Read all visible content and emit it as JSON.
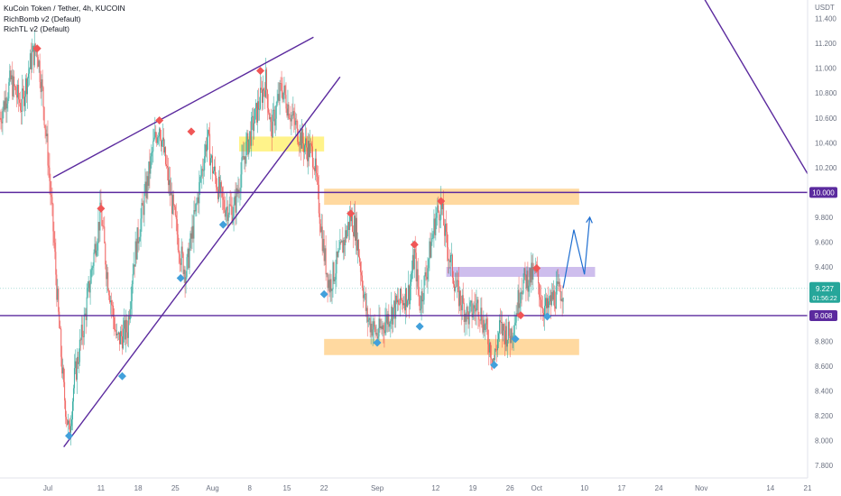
{
  "legend": {
    "title": "KuCoin Token / Tether, 4h, KUCOIN",
    "indicator1": "RichBomb v2 (Default)",
    "indicator2": "RichTL v2 (Default)"
  },
  "colors": {
    "up": "#26a69a",
    "down": "#ef5350",
    "trendline": "#5b2a9e",
    "zone_yellow": "#fff176",
    "zone_orange": "#ffd28f",
    "zone_purple": "#c5b3ea",
    "marker_red": "#f05656",
    "marker_blue": "#42a0db",
    "projection": "#1f6fd1",
    "tag_purple": "#5b2a9e",
    "tag_green": "#26a69a"
  },
  "chart_data": {
    "type": "candlestick",
    "title": "KuCoin Token / Tether, 4h, KUCOIN",
    "xlabel": "",
    "ylabel": "USDT",
    "ylim": [
      7.7,
      11.55
    ],
    "x_axis": {
      "range": [
        "2021-06-22",
        "2021-11-21"
      ],
      "tick_labels": [
        {
          "date": "2021-07-01",
          "label": "Jul"
        },
        {
          "date": "2021-07-11",
          "label": "11"
        },
        {
          "date": "2021-07-18",
          "label": "18"
        },
        {
          "date": "2021-07-25",
          "label": "25"
        },
        {
          "date": "2021-08-01",
          "label": "Aug"
        },
        {
          "date": "2021-08-08",
          "label": "8"
        },
        {
          "date": "2021-08-15",
          "label": "15"
        },
        {
          "date": "2021-08-22",
          "label": "22"
        },
        {
          "date": "2021-09-01",
          "label": "Sep"
        },
        {
          "date": "2021-09-12",
          "label": "12"
        },
        {
          "date": "2021-09-19",
          "label": "19"
        },
        {
          "date": "2021-09-26",
          "label": "26"
        },
        {
          "date": "2021-10-01",
          "label": "Oct"
        },
        {
          "date": "2021-10-10",
          "label": "10"
        },
        {
          "date": "2021-10-17",
          "label": "17"
        },
        {
          "date": "2021-10-24",
          "label": "24"
        },
        {
          "date": "2021-11-01",
          "label": "Nov"
        },
        {
          "date": "2021-11-14",
          "label": "14"
        },
        {
          "date": "2021-11-21",
          "label": "21"
        }
      ]
    },
    "y_axis": {
      "unit": "USDT",
      "tick_values": [
        7.8,
        8.0,
        8.2,
        8.4,
        8.6,
        8.8,
        9.0,
        9.2,
        9.4,
        9.6,
        9.8,
        10.0,
        10.2,
        10.4,
        10.6,
        10.8,
        11.0,
        11.2,
        11.4
      ],
      "tick_labels": [
        "7.800",
        "8.000",
        "8.200",
        "8.400",
        "8.600",
        "8.800",
        "9.000",
        "9.200",
        "9.400",
        "9.600",
        "9.800",
        "10.000",
        "10.200",
        "10.400",
        "10.600",
        "10.800",
        "11.000",
        "11.200",
        "11.400"
      ]
    },
    "price_path": [
      {
        "date": "2021-06-22",
        "close": 10.6
      },
      {
        "date": "2021-06-24",
        "close": 10.9
      },
      {
        "date": "2021-06-26",
        "close": 10.7
      },
      {
        "date": "2021-06-28",
        "close": 11.1
      },
      {
        "date": "2021-06-29",
        "close": 11.15
      },
      {
        "date": "2021-06-30",
        "close": 10.8
      },
      {
        "date": "2021-07-01",
        "close": 10.3
      },
      {
        "date": "2021-07-02",
        "close": 9.7
      },
      {
        "date": "2021-07-03",
        "close": 9.0
      },
      {
        "date": "2021-07-04",
        "close": 8.4
      },
      {
        "date": "2021-07-05",
        "close": 8.05
      },
      {
        "date": "2021-07-06",
        "close": 8.5
      },
      {
        "date": "2021-07-08",
        "close": 9.0
      },
      {
        "date": "2021-07-10",
        "close": 9.6
      },
      {
        "date": "2021-07-11",
        "close": 9.85
      },
      {
        "date": "2021-07-12",
        "close": 9.4
      },
      {
        "date": "2021-07-14",
        "close": 8.8
      },
      {
        "date": "2021-07-16",
        "close": 8.9
      },
      {
        "date": "2021-07-17",
        "close": 9.4
      },
      {
        "date": "2021-07-19",
        "close": 9.9
      },
      {
        "date": "2021-07-21",
        "close": 10.4
      },
      {
        "date": "2021-07-22",
        "close": 10.55
      },
      {
        "date": "2021-07-24",
        "close": 10.0
      },
      {
        "date": "2021-07-26",
        "close": 9.5
      },
      {
        "date": "2021-07-27",
        "close": 9.35
      },
      {
        "date": "2021-07-29",
        "close": 9.9
      },
      {
        "date": "2021-07-31",
        "close": 10.45
      },
      {
        "date": "2021-08-01",
        "close": 10.2
      },
      {
        "date": "2021-08-03",
        "close": 9.9
      },
      {
        "date": "2021-08-05",
        "close": 9.85
      },
      {
        "date": "2021-08-07",
        "close": 10.3
      },
      {
        "date": "2021-08-09",
        "close": 10.6
      },
      {
        "date": "2021-08-11",
        "close": 10.9
      },
      {
        "date": "2021-08-12",
        "close": 10.5
      },
      {
        "date": "2021-08-14",
        "close": 10.85
      },
      {
        "date": "2021-08-16",
        "close": 10.6
      },
      {
        "date": "2021-08-18",
        "close": 10.4
      },
      {
        "date": "2021-08-20",
        "close": 10.3
      },
      {
        "date": "2021-08-21",
        "close": 9.9
      },
      {
        "date": "2021-08-22",
        "close": 9.5
      },
      {
        "date": "2021-08-23",
        "close": 9.25
      },
      {
        "date": "2021-08-25",
        "close": 9.5
      },
      {
        "date": "2021-08-27",
        "close": 9.8
      },
      {
        "date": "2021-08-28",
        "close": 9.7
      },
      {
        "date": "2021-08-30",
        "close": 9.0
      },
      {
        "date": "2021-09-01",
        "close": 8.85
      },
      {
        "date": "2021-09-03",
        "close": 9.0
      },
      {
        "date": "2021-09-05",
        "close": 9.1
      },
      {
        "date": "2021-09-07",
        "close": 9.2
      },
      {
        "date": "2021-09-08",
        "close": 9.5
      },
      {
        "date": "2021-09-09",
        "close": 9.1
      },
      {
        "date": "2021-09-10",
        "close": 9.3
      },
      {
        "date": "2021-09-12",
        "close": 9.8
      },
      {
        "date": "2021-09-13",
        "close": 9.9
      },
      {
        "date": "2021-09-14",
        "close": 9.6
      },
      {
        "date": "2021-09-16",
        "close": 9.2
      },
      {
        "date": "2021-09-18",
        "close": 9.0
      },
      {
        "date": "2021-09-20",
        "close": 9.1
      },
      {
        "date": "2021-09-22",
        "close": 8.8
      },
      {
        "date": "2021-09-23",
        "close": 8.65
      },
      {
        "date": "2021-09-24",
        "close": 8.9
      },
      {
        "date": "2021-09-26",
        "close": 8.85
      },
      {
        "date": "2021-09-27",
        "close": 9.0
      },
      {
        "date": "2021-09-28",
        "close": 9.25
      },
      {
        "date": "2021-09-29",
        "close": 9.3
      },
      {
        "date": "2021-10-01",
        "close": 9.35
      },
      {
        "date": "2021-10-02",
        "close": 9.1
      },
      {
        "date": "2021-10-03",
        "close": 9.05
      },
      {
        "date": "2021-10-04",
        "close": 9.15
      },
      {
        "date": "2021-10-06",
        "close": 9.227
      }
    ],
    "current_price": {
      "value": 9.227,
      "label": "9.227",
      "countdown": "01:56:22"
    },
    "levels": [
      {
        "value": 10.0,
        "label": "10.000"
      },
      {
        "value": 9.008,
        "label": "9.008"
      }
    ],
    "trendlines": [
      {
        "from": {
          "date": "2021-07-02",
          "price": 10.12
        },
        "to": {
          "date": "2021-08-20",
          "price": 11.25
        }
      },
      {
        "from": {
          "date": "2021-07-04",
          "price": 7.95
        },
        "to": {
          "date": "2021-08-25",
          "price": 10.93
        }
      },
      {
        "from": {
          "date": "2021-11-01",
          "price": 11.6
        },
        "to": {
          "date": "2021-11-21",
          "price": 10.15
        }
      }
    ],
    "zones": [
      {
        "name": "yellow-resistance",
        "from": "2021-08-06",
        "to": "2021-08-22",
        "top": 10.45,
        "bottom": 10.33,
        "color_key": "zone_yellow"
      },
      {
        "name": "orange-top",
        "from": "2021-08-22",
        "to": "2021-10-09",
        "top": 10.03,
        "bottom": 9.9,
        "color_key": "zone_orange"
      },
      {
        "name": "orange-bottom",
        "from": "2021-08-22",
        "to": "2021-10-09",
        "top": 8.82,
        "bottom": 8.69,
        "color_key": "zone_orange"
      },
      {
        "name": "purple-box",
        "from": "2021-09-14",
        "to": "2021-10-12",
        "top": 9.4,
        "bottom": 9.32,
        "color_key": "zone_purple"
      }
    ],
    "markers": [
      {
        "type": "red",
        "date": "2021-06-29",
        "price": 11.16
      },
      {
        "type": "red",
        "date": "2021-07-11",
        "price": 9.87
      },
      {
        "type": "red",
        "date": "2021-07-22",
        "price": 10.58
      },
      {
        "type": "red",
        "date": "2021-07-28",
        "price": 10.49
      },
      {
        "type": "red",
        "date": "2021-08-10",
        "price": 10.98
      },
      {
        "type": "red",
        "date": "2021-08-27",
        "price": 9.83
      },
      {
        "type": "red",
        "date": "2021-09-08",
        "price": 9.58
      },
      {
        "type": "red",
        "date": "2021-09-13",
        "price": 9.93
      },
      {
        "type": "red",
        "date": "2021-09-28",
        "price": 9.01
      },
      {
        "type": "red",
        "date": "2021-10-01",
        "price": 9.39
      },
      {
        "type": "blue",
        "date": "2021-07-05",
        "price": 8.04
      },
      {
        "type": "blue",
        "date": "2021-07-15",
        "price": 8.52
      },
      {
        "type": "blue",
        "date": "2021-07-26",
        "price": 9.31
      },
      {
        "type": "blue",
        "date": "2021-08-03",
        "price": 9.74
      },
      {
        "type": "blue",
        "date": "2021-08-22",
        "price": 9.18
      },
      {
        "type": "blue",
        "date": "2021-09-01",
        "price": 8.79
      },
      {
        "type": "blue",
        "date": "2021-09-09",
        "price": 8.92
      },
      {
        "type": "blue",
        "date": "2021-09-23",
        "price": 8.61
      },
      {
        "type": "blue",
        "date": "2021-09-27",
        "price": 8.82
      },
      {
        "type": "blue",
        "date": "2021-10-03",
        "price": 9.0
      }
    ],
    "projection_path": [
      {
        "date": "2021-10-06",
        "price": 9.23
      },
      {
        "date": "2021-10-08",
        "price": 9.7
      },
      {
        "date": "2021-10-10",
        "price": 9.34
      },
      {
        "date": "2021-10-11",
        "price": 9.8
      }
    ]
  }
}
